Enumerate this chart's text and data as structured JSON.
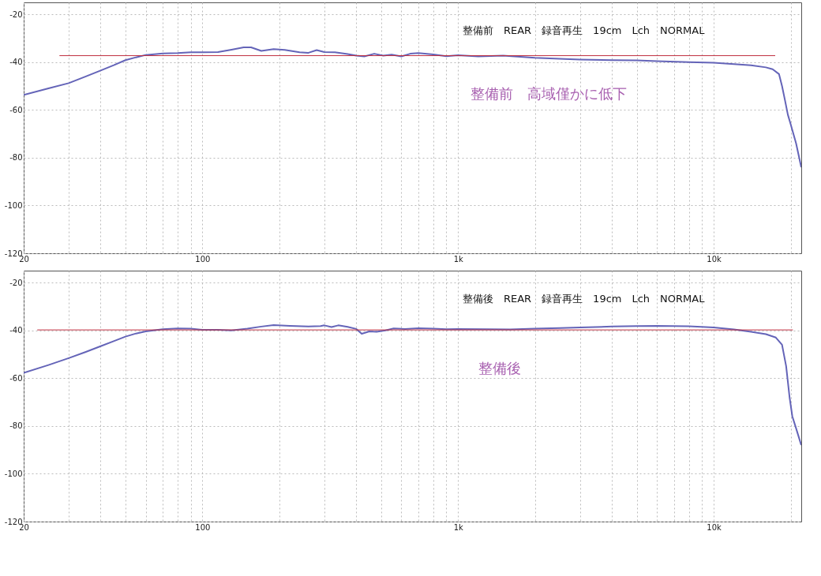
{
  "chart_data": [
    {
      "type": "line",
      "title": "整備前　REAR　録音再生　19cm　Lch　NORMAL",
      "annotations": [
        "整備前　高域僅かに低下"
      ],
      "log": "x",
      "grid": true,
      "xlim": [
        20,
        22000
      ],
      "ylim": [
        -120,
        -15
      ],
      "xticks": [
        20,
        {
          "value": 30,
          "label": null
        },
        {
          "value": 40,
          "label": null
        },
        {
          "value": 50,
          "label": null
        },
        {
          "value": 60,
          "label": null
        },
        {
          "value": 70,
          "label": null
        },
        {
          "value": 80,
          "label": null
        },
        {
          "value": 90,
          "label": null
        },
        100,
        {
          "value": 200,
          "label": null
        },
        {
          "value": 300,
          "label": null
        },
        {
          "value": 400,
          "label": null
        },
        {
          "value": 500,
          "label": null
        },
        {
          "value": 600,
          "label": null
        },
        {
          "value": 700,
          "label": null
        },
        {
          "value": 800,
          "label": null
        },
        {
          "value": 900,
          "label": null
        },
        {
          "value": 1000,
          "label": "1k"
        },
        {
          "value": 2000,
          "label": null
        },
        {
          "value": 3000,
          "label": null
        },
        {
          "value": 4000,
          "label": null
        },
        {
          "value": 5000,
          "label": null
        },
        {
          "value": 6000,
          "label": null
        },
        {
          "value": 7000,
          "label": null
        },
        {
          "value": 8000,
          "label": null
        },
        {
          "value": 9000,
          "label": null
        },
        {
          "value": 10000,
          "label": "10k"
        },
        {
          "value": 20000,
          "label": null
        }
      ],
      "yticks": [
        -120,
        -100,
        -80,
        -60,
        -40,
        -20
      ],
      "series": [
        {
          "color": "#6464b8",
          "x": [
            20,
            25,
            30,
            35,
            40,
            45,
            50,
            55,
            60,
            70,
            80,
            90,
            100,
            115,
            130,
            145,
            155,
            170,
            190,
            210,
            240,
            260,
            280,
            300,
            330,
            370,
            400,
            430,
            470,
            510,
            550,
            600,
            650,
            700,
            800,
            900,
            1000,
            1200,
            1500,
            2000,
            2500,
            3000,
            4000,
            5000,
            6000,
            8000,
            10000,
            12000,
            14000,
            16000,
            17000,
            18000,
            18500,
            19000,
            19500,
            20000,
            21000,
            22000
          ],
          "values": [
            -53.7,
            -51,
            -48.8,
            -46,
            -43.5,
            -41.3,
            -39.2,
            -38,
            -37,
            -36.4,
            -36.2,
            -35.9,
            -35.9,
            -35.8,
            -34.8,
            -33.8,
            -33.8,
            -35.3,
            -34.6,
            -34.9,
            -35.9,
            -36.1,
            -35,
            -35.8,
            -35.9,
            -36.6,
            -37.3,
            -37.6,
            -36.5,
            -37.3,
            -36.9,
            -37.6,
            -36.5,
            -36.2,
            -36.8,
            -37.5,
            -37.1,
            -37.6,
            -37.3,
            -38.2,
            -38.6,
            -38.9,
            -39.2,
            -39.3,
            -39.6,
            -40,
            -40.3,
            -40.8,
            -41.3,
            -42.2,
            -43,
            -45,
            -50,
            -56,
            -62,
            -66,
            -74,
            -84
          ]
        },
        {
          "color": "#c03040",
          "x": [
            27.6,
            17400
          ],
          "values": [
            -37.3,
            -37.3
          ]
        }
      ]
    },
    {
      "type": "line",
      "title": "整備後　REAR　録音再生　19cm　Lch　NORMAL",
      "annotations": [
        "整備後"
      ],
      "log": "x",
      "grid": true,
      "xlim": [
        20,
        22000
      ],
      "ylim": [
        -120,
        -15
      ],
      "xticks": [
        20,
        {
          "value": 30,
          "label": null
        },
        {
          "value": 40,
          "label": null
        },
        {
          "value": 50,
          "label": null
        },
        {
          "value": 60,
          "label": null
        },
        {
          "value": 70,
          "label": null
        },
        {
          "value": 80,
          "label": null
        },
        {
          "value": 90,
          "label": null
        },
        100,
        {
          "value": 200,
          "label": null
        },
        {
          "value": 300,
          "label": null
        },
        {
          "value": 400,
          "label": null
        },
        {
          "value": 500,
          "label": null
        },
        {
          "value": 600,
          "label": null
        },
        {
          "value": 700,
          "label": null
        },
        {
          "value": 800,
          "label": null
        },
        {
          "value": 900,
          "label": null
        },
        {
          "value": 1000,
          "label": "1k"
        },
        {
          "value": 2000,
          "label": null
        },
        {
          "value": 3000,
          "label": null
        },
        {
          "value": 4000,
          "label": null
        },
        {
          "value": 5000,
          "label": null
        },
        {
          "value": 6000,
          "label": null
        },
        {
          "value": 7000,
          "label": null
        },
        {
          "value": 8000,
          "label": null
        },
        {
          "value": 9000,
          "label": null
        },
        {
          "value": 10000,
          "label": "10k"
        },
        {
          "value": 20000,
          "label": null
        }
      ],
      "yticks": [
        -120,
        -100,
        -80,
        -60,
        -40,
        -20
      ],
      "series": [
        {
          "color": "#6464b8",
          "x": [
            20,
            25,
            30,
            35,
            40,
            45,
            50,
            55,
            60,
            70,
            80,
            90,
            100,
            115,
            130,
            150,
            170,
            190,
            220,
            260,
            290,
            300,
            320,
            340,
            370,
            400,
            420,
            450,
            480,
            520,
            560,
            620,
            700,
            800,
            900,
            1000,
            1300,
            1600,
            2000,
            2500,
            3000,
            4000,
            5000,
            6000,
            8000,
            10000,
            12000,
            14000,
            16000,
            17500,
            18500,
            19200,
            19800,
            20300,
            21000,
            22000
          ],
          "values": [
            -57.8,
            -54.5,
            -51.6,
            -49,
            -46.6,
            -44.5,
            -42.6,
            -41.3,
            -40.4,
            -39.5,
            -39.2,
            -39.3,
            -39.8,
            -39.8,
            -40,
            -39.3,
            -38.4,
            -37.8,
            -38.1,
            -38.4,
            -38.2,
            -37.9,
            -38.6,
            -37.9,
            -38.5,
            -39.4,
            -41.4,
            -40.4,
            -40.6,
            -40,
            -39.2,
            -39.4,
            -39.1,
            -39.3,
            -39.5,
            -39.4,
            -39.5,
            -39.6,
            -39.3,
            -39,
            -38.8,
            -38.4,
            -38.2,
            -38.1,
            -38.3,
            -38.8,
            -39.6,
            -40.6,
            -41.6,
            -43,
            -46,
            -55,
            -68,
            -76,
            -81,
            -88
          ]
        },
        {
          "color": "#c03040",
          "x": [
            22.6,
            20400
          ],
          "values": [
            -39.8,
            -39.8
          ]
        }
      ]
    }
  ]
}
